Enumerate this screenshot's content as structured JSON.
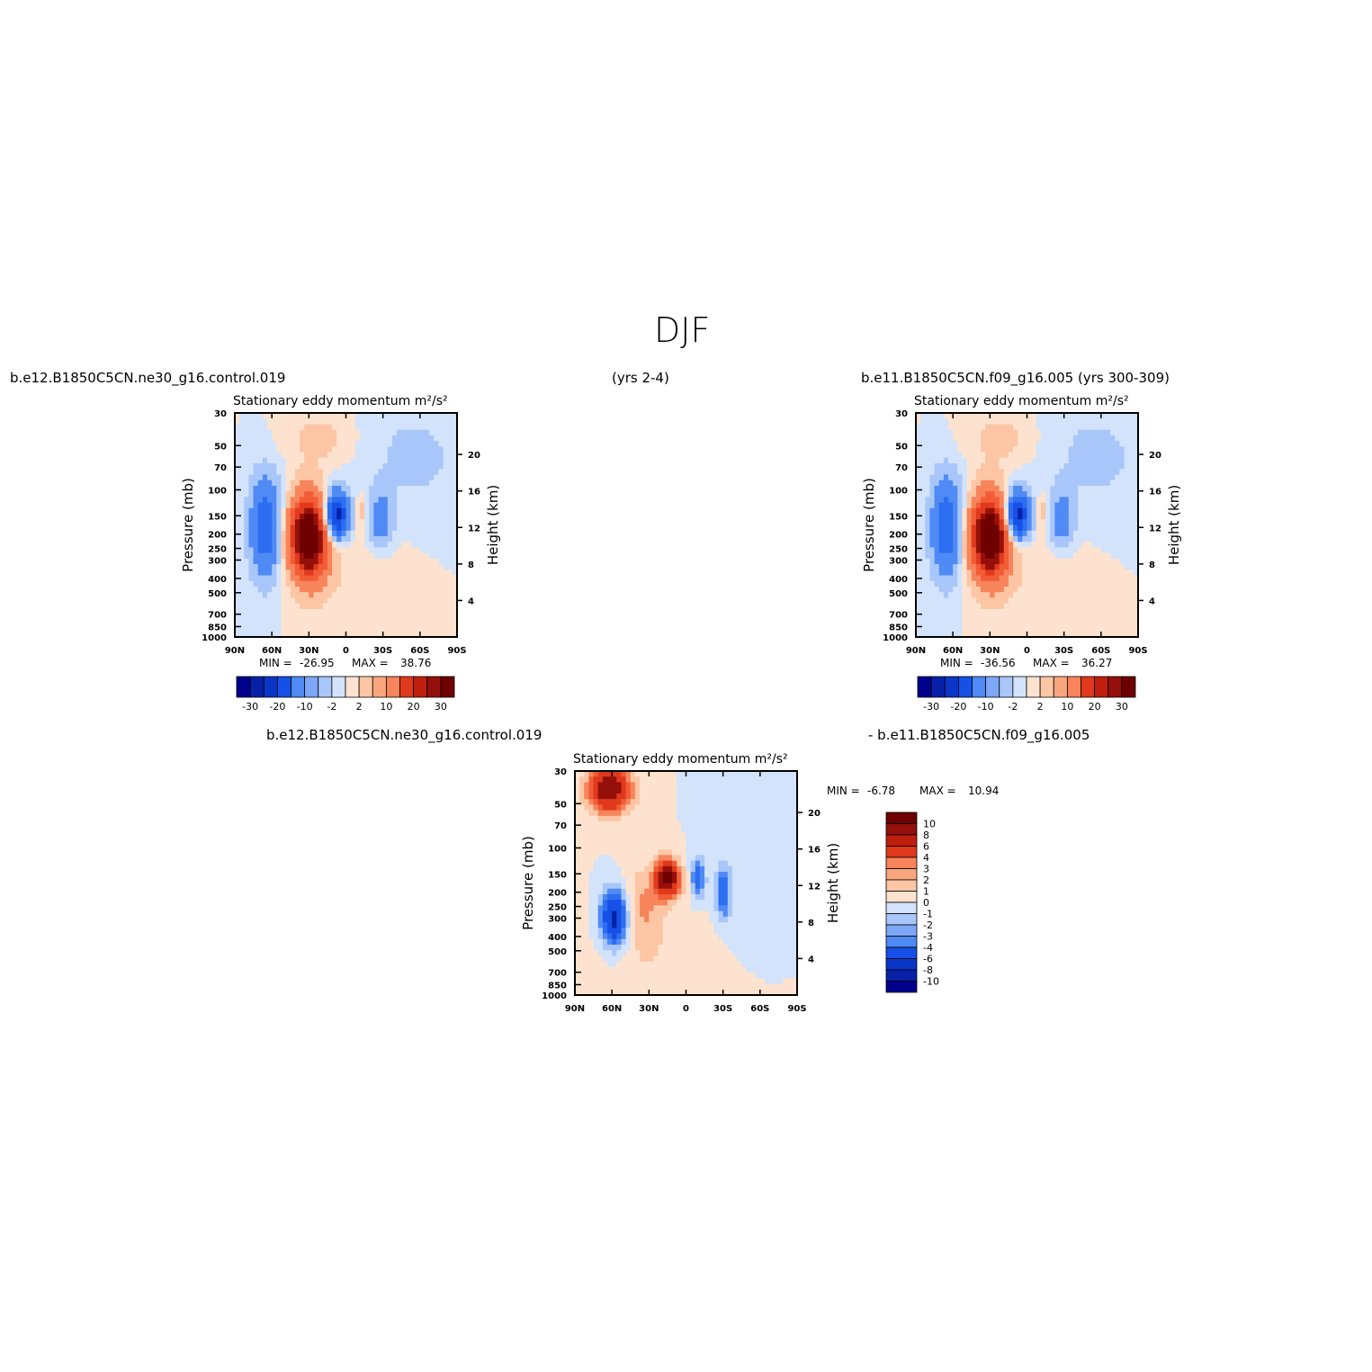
{
  "title": "DJF",
  "labels": {
    "case1": "b.e12.B1850C5CN.ne30_g16.control.019",
    "case1_years": "(yrs 2-4)",
    "case2": "b.e11.B1850C5CN.f09_g16.005 (yrs 300-309)",
    "diff_left": "b.e12.B1850C5CN.ne30_g16.control.019",
    "diff_right": "- b.e11.B1850C5CN.f09_g16.005"
  },
  "colors": {
    "blue": [
      "#00008c",
      "#0621a8",
      "#0a36c8",
      "#1650e6",
      "#2d6ef0",
      "#4f8af5",
      "#7ca8f7",
      "#a8c6f9",
      "#d2e3fb"
    ],
    "red": [
      "#fde3cf",
      "#fcc6a5",
      "#f9a67e",
      "#f7845a",
      "#f25c36",
      "#e0391c",
      "#c01f0e",
      "#95100a",
      "#6e0000"
    ],
    "frame": "#000000",
    "background": "#ffffff"
  },
  "chart_data": [
    {
      "type": "heatmap",
      "id": "panel-a",
      "title": "Stationary eddy momentum  m²/s²",
      "ylabel": "Pressure (mb)",
      "ylabel_right": "Height (km)",
      "xticks": [
        "90N",
        "60N",
        "30N",
        "0",
        "30S",
        "60S",
        "90S"
      ],
      "xlim": [
        90,
        -90
      ],
      "yticks": [
        30,
        50,
        70,
        100,
        150,
        200,
        250,
        300,
        400,
        500,
        700,
        850,
        1000
      ],
      "ylim": [
        30,
        1000
      ],
      "yticks_right": [
        4,
        8,
        12,
        16,
        20
      ],
      "stats": {
        "min_label": "MIN =",
        "min": "-26.95",
        "max_label": "MAX =",
        "max": "38.76"
      },
      "colorbar": {
        "orientation": "horizontal",
        "levels": [
          -30,
          -25,
          -20,
          -15,
          -10,
          -5,
          -2,
          0,
          2,
          5,
          10,
          15,
          20,
          25,
          30
        ],
        "tick_labels": [
          "-30",
          "-20",
          "-10",
          "-2",
          "2",
          "10",
          "20",
          "30"
        ]
      }
    },
    {
      "type": "heatmap",
      "id": "panel-b",
      "title": "Stationary eddy momentum  m²/s²",
      "ylabel": "Pressure (mb)",
      "ylabel_right": "Height (km)",
      "xticks": [
        "90N",
        "60N",
        "30N",
        "0",
        "30S",
        "60S",
        "90S"
      ],
      "xlim": [
        90,
        -90
      ],
      "yticks": [
        30,
        50,
        70,
        100,
        150,
        200,
        250,
        300,
        400,
        500,
        700,
        850,
        1000
      ],
      "ylim": [
        30,
        1000
      ],
      "yticks_right": [
        4,
        8,
        12,
        16,
        20
      ],
      "stats": {
        "min_label": "MIN =",
        "min": "-36.56",
        "max_label": "MAX =",
        "max": "36.27"
      },
      "colorbar": {
        "orientation": "horizontal",
        "levels": [
          -30,
          -25,
          -20,
          -15,
          -10,
          -5,
          -2,
          0,
          2,
          5,
          10,
          15,
          20,
          25,
          30
        ],
        "tick_labels": [
          "-30",
          "-20",
          "-10",
          "-2",
          "2",
          "10",
          "20",
          "30"
        ]
      }
    },
    {
      "type": "heatmap",
      "id": "panel-diff",
      "title": "Stationary eddy momentum  m²/s²",
      "ylabel": "Pressure (mb)",
      "ylabel_right": "Height (km)",
      "xticks": [
        "90N",
        "60N",
        "30N",
        "0",
        "30S",
        "60S",
        "90S"
      ],
      "xlim": [
        90,
        -90
      ],
      "yticks": [
        30,
        50,
        70,
        100,
        150,
        200,
        250,
        300,
        400,
        500,
        700,
        850,
        1000
      ],
      "ylim": [
        30,
        1000
      ],
      "yticks_right": [
        4,
        8,
        12,
        16,
        20
      ],
      "stats": {
        "min_label": "MIN =",
        "min": "-6.78",
        "max_label": "MAX =",
        "max": "10.94"
      },
      "colorbar": {
        "orientation": "vertical",
        "levels": [
          10,
          8,
          6,
          4,
          3,
          2,
          1,
          0,
          -1,
          -2,
          -3,
          -4,
          -6,
          -8,
          -10
        ],
        "tick_labels": [
          "10",
          "8",
          "6",
          "4",
          "3",
          "2",
          "1",
          "0",
          "-1",
          "-2",
          "-3",
          "-4",
          "-6",
          "-8",
          "-10"
        ]
      }
    }
  ]
}
